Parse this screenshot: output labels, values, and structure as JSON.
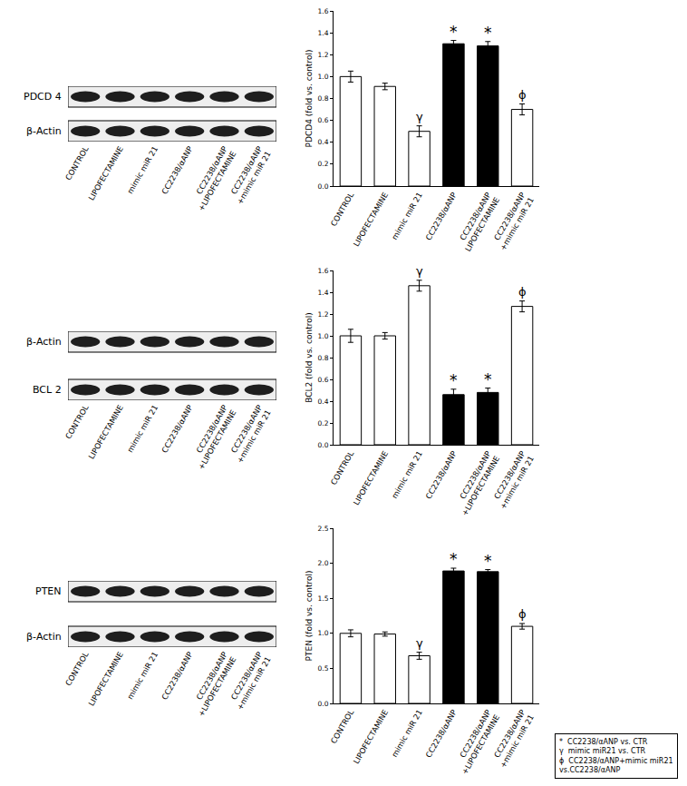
{
  "chart_data": [
    {
      "type": "bar",
      "y_label": "PDCD4 (fold vs. control)",
      "categories": [
        "CONTROL",
        "LIPOFECTAMINE",
        "mimic miR 21",
        "CC2238/αANP",
        "CC2238/αANP\nLIPOFECTAMINE",
        "CC2238/αANP\n+mimic miR 21"
      ],
      "values": [
        1.0,
        0.91,
        0.5,
        1.3,
        1.28,
        0.7
      ],
      "errors": [
        0.05,
        0.03,
        0.05,
        0.03,
        0.04,
        0.05
      ],
      "colors": [
        "#ffffff",
        "#ffffff",
        "#ffffff",
        "#000000",
        "#000000",
        "#ffffff"
      ],
      "ylim": [
        0,
        1.6
      ],
      "yticks": [
        {
          "value": 0,
          "label": "0.0"
        },
        0.2,
        0.4,
        0.6,
        0.8,
        {
          "value": 1,
          "label": "1.0"
        },
        1.2,
        1.4,
        1.6
      ],
      "annotations": [
        {
          "category": "mimic miR 21",
          "text": "γ"
        },
        {
          "category": "CC2238/αANP",
          "text": "*"
        },
        {
          "category": "CC2238/αANP\nLIPOFECTAMINE",
          "text": "*"
        },
        {
          "category": "CC2238/αANP\n+mimic miR 21",
          "text": "ϕ"
        }
      ]
    },
    {
      "type": "bar",
      "y_label": "BCL2 (fold vs. control)",
      "categories": [
        "CONTROL",
        "LIPOFECTAMINE",
        "mimic miR 21",
        "CC2238/αANP",
        "CC2238/αANP\n+LIPOFECTAMINE",
        "CC2238/αANP\n+mimic miR 21"
      ],
      "values": [
        1.0,
        1.0,
        1.46,
        0.46,
        0.48,
        1.27
      ],
      "errors": [
        0.06,
        0.03,
        0.05,
        0.05,
        0.04,
        0.05
      ],
      "colors": [
        "#ffffff",
        "#ffffff",
        "#ffffff",
        "#000000",
        "#000000",
        "#ffffff"
      ],
      "ylim": [
        0,
        1.6
      ],
      "yticks": [
        {
          "value": 0,
          "label": "0.0"
        },
        0.2,
        0.4,
        0.6,
        0.8,
        {
          "value": 1,
          "label": "1.0"
        },
        1.2,
        1.4,
        1.6
      ],
      "annotations": [
        {
          "category": "mimic miR 21",
          "text": "γ"
        },
        {
          "category": "CC2238/αANP",
          "text": "*"
        },
        {
          "category": "CC2238/αANP\n+LIPOFECTAMINE",
          "text": "*"
        },
        {
          "category": "CC2238/αANP\n+mimic miR 21",
          "text": "ϕ"
        }
      ]
    },
    {
      "type": "bar",
      "y_label": "PTEN (fold vs. control)",
      "categories": [
        "CONTROL",
        "LIPOFECTAMINE",
        "mimic miR 21",
        "CC2238/αANP",
        "CC2238/αANP\n+LIPOFECTAMINE",
        "CC2238/αANP\n+mimic miR 21"
      ],
      "values": [
        1.0,
        0.99,
        0.68,
        1.89,
        1.88,
        1.1
      ],
      "errors": [
        0.05,
        0.03,
        0.05,
        0.04,
        0.03,
        0.04
      ],
      "colors": [
        "#ffffff",
        "#ffffff",
        "#ffffff",
        "#000000",
        "#000000",
        "#ffffff"
      ],
      "ylim": [
        0,
        2.5
      ],
      "yticks": [
        {
          "value": 0,
          "label": "0.0"
        },
        0.5,
        {
          "value": 1,
          "label": "1.0"
        },
        1.5,
        {
          "value": 2,
          "label": "2.0"
        },
        2.5
      ],
      "annotations": [
        {
          "category": "mimic miR 21",
          "text": "γ"
        },
        {
          "category": "CC2238/αANP",
          "text": "*"
        },
        {
          "category": "CC2238/αANP\n+LIPOFECTAMINE",
          "text": "*"
        },
        {
          "category": "CC2238/αANP\n+mimic miR 21",
          "text": "ϕ"
        }
      ]
    }
  ],
  "blots": [
    {
      "rows": [
        "PDCD 4",
        "β-Actin"
      ],
      "lanes": [
        "CONTROL",
        "LIPOFECTAMINE",
        "mimic miR 21",
        "CC2238/αANP",
        "CC2238/αANP\n+LIPOFECTAMINE",
        "CC2238/αANP\n+mimic miR 21"
      ]
    },
    {
      "rows": [
        "β-Actin",
        "BCL 2"
      ],
      "lanes": [
        "CONTROL",
        "LIPOFECTAMINE",
        "mimic miR 21",
        "CC2238/αANP",
        "CC2238/αANP\n+LIPOFECTAMINE",
        "CC2238/αANP\n+mimic miR 21"
      ]
    },
    {
      "rows": [
        "PTEN",
        "β-Actin"
      ],
      "lanes": [
        "CONTROL",
        "LIPOFECTAMINE",
        "mimic miR 21",
        "CC2238/αANP",
        "CC2238/αANP\n+LIPOFECTAMINE",
        "CC2238/αANP\n+mimic miR 21"
      ]
    }
  ],
  "legend_box": [
    {
      "symbol": "*",
      "text": "CC2238/αANP vs. CTR"
    },
    {
      "symbol": "γ",
      "text": "mimic miR21 vs. CTR"
    },
    {
      "symbol": "ϕ",
      "text": "CC2238/αANP+mimic miR21\nvs.CC2238/αANP"
    }
  ]
}
